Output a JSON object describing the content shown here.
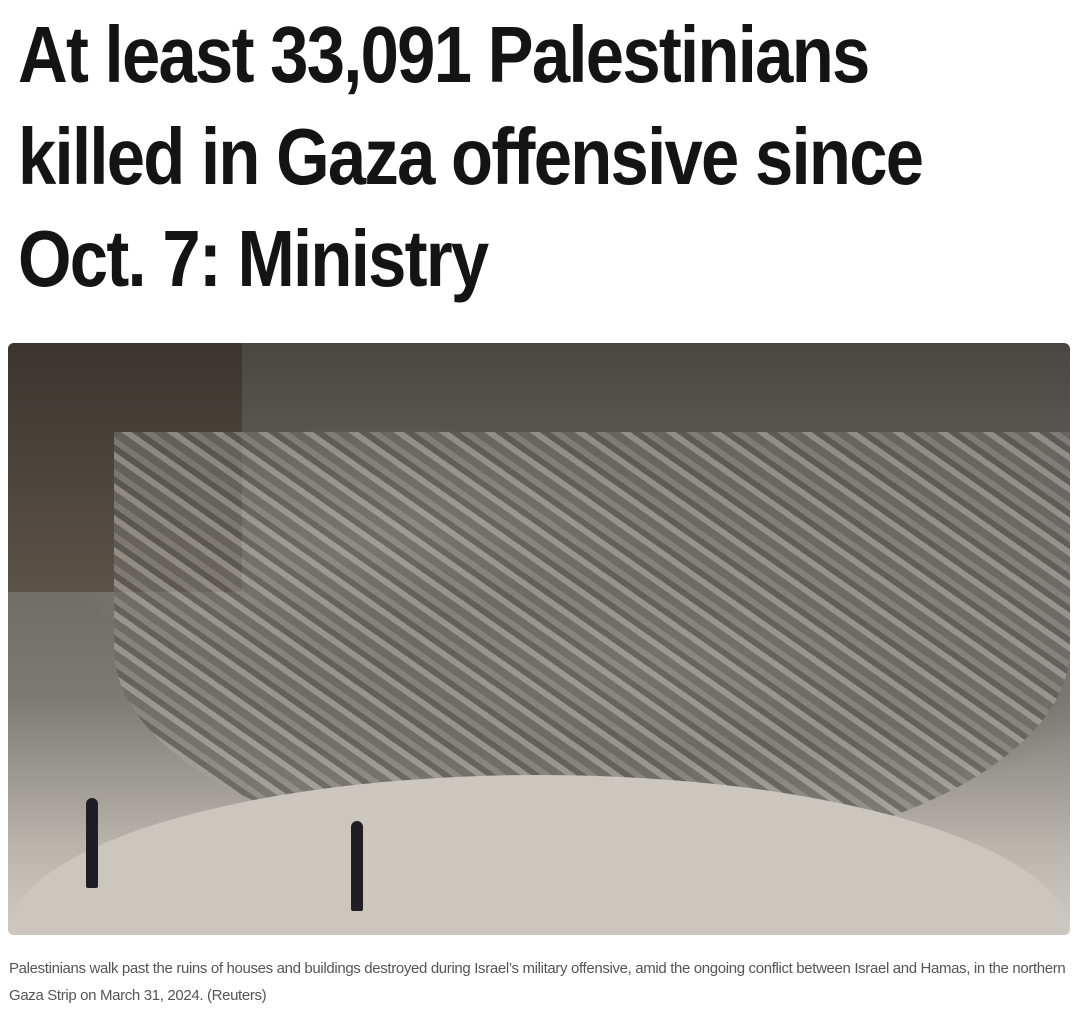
{
  "article": {
    "headline_lines": [
      "At least 33,091 Palestinians",
      "killed in Gaza offensive since",
      "Oct. 7: Ministry"
    ],
    "photo": {
      "description_alt": "Palestinians walk past the ruins of houses and buildings"
    },
    "caption": "Palestinians walk past the ruins of houses and buildings destroyed during Israel’s military offensive, amid the ongoing conflict between Israel and Hamas, in the northern Gaza Strip on March 31, 2024. (Reuters)"
  }
}
